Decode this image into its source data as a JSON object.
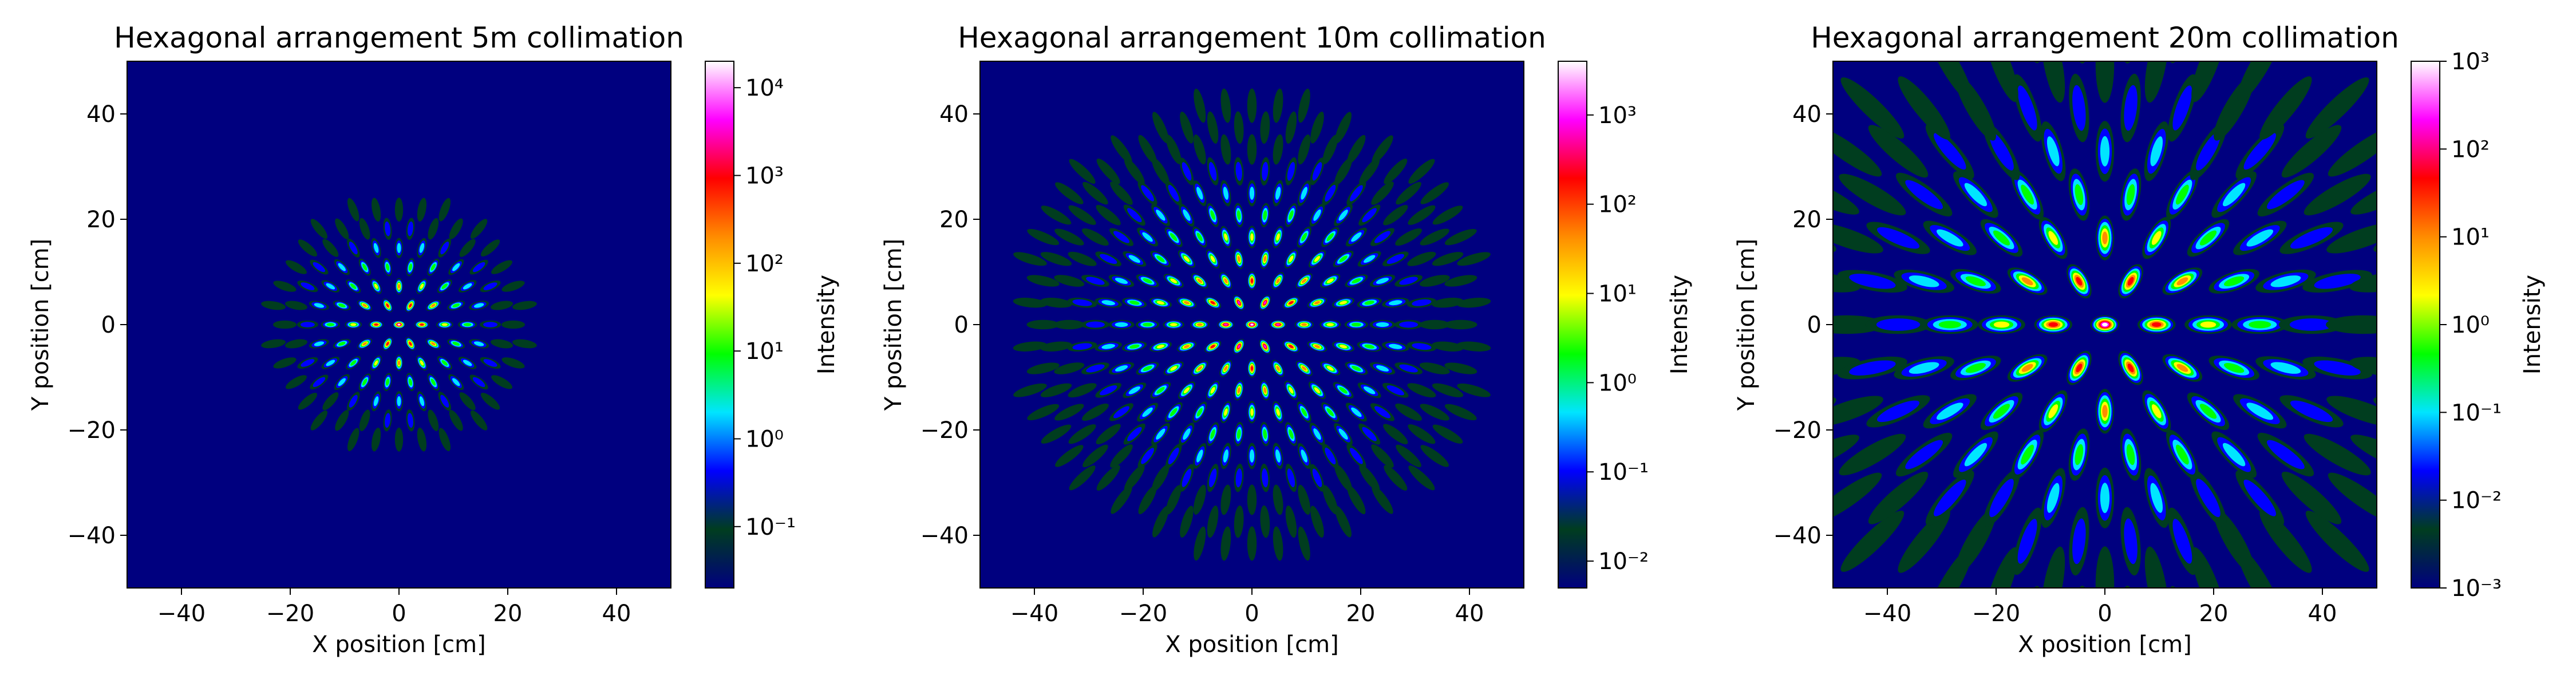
{
  "chart_data": [
    {
      "type": "heatmap",
      "title": "Hexagonal arrangement 5m collimation",
      "xlabel": "X position [cm]",
      "ylabel": "Y position [cm]",
      "xlim": [
        -50,
        50
      ],
      "ylim": [
        -50,
        50
      ],
      "xticks": [
        -40,
        -20,
        0,
        20,
        40
      ],
      "yticks": [
        -40,
        -20,
        0,
        20,
        40
      ],
      "colorbar": {
        "label": "Intensity",
        "scale": "log",
        "range": [
          0.02,
          20000
        ],
        "ticks": [
          {
            "value": 0.1,
            "label": "10⁻¹"
          },
          {
            "value": 1,
            "label": "10⁰"
          },
          {
            "value": 10,
            "label": "10¹"
          },
          {
            "value": 100,
            "label": "10²"
          },
          {
            "value": 1000,
            "label": "10³"
          },
          {
            "value": 10000,
            "label": "10⁴"
          }
        ]
      },
      "pattern": {
        "pitch": 4.2,
        "extent": 25,
        "stretch": 1.0
      }
    },
    {
      "type": "heatmap",
      "title": "Hexagonal arrangement 10m collimation",
      "xlabel": "X position [cm]",
      "ylabel": "Y position [cm]",
      "xlim": [
        -50,
        50
      ],
      "ylim": [
        -50,
        50
      ],
      "xticks": [
        -40,
        -20,
        0,
        20,
        40
      ],
      "yticks": [
        -40,
        -20,
        0,
        20,
        40
      ],
      "colorbar": {
        "label": "Intensity",
        "scale": "log",
        "range": [
          0.005,
          4000
        ],
        "ticks": [
          {
            "value": 0.01,
            "label": "10⁻²"
          },
          {
            "value": 0.1,
            "label": "10⁻¹"
          },
          {
            "value": 1,
            "label": "10⁰"
          },
          {
            "value": 10,
            "label": "10¹"
          },
          {
            "value": 100,
            "label": "10²"
          },
          {
            "value": 1000,
            "label": "10³"
          }
        ]
      },
      "pattern": {
        "pitch": 4.8,
        "extent": 43,
        "stretch": 1.4
      }
    },
    {
      "type": "heatmap",
      "title": "Hexagonal arrangement 20m collimation",
      "xlabel": "X position [cm]",
      "ylabel": "Y position [cm]",
      "xlim": [
        -50,
        50
      ],
      "ylim": [
        -50,
        50
      ],
      "xticks": [
        -40,
        -20,
        0,
        20,
        40
      ],
      "yticks": [
        -40,
        -20,
        0,
        20,
        40
      ],
      "colorbar": {
        "label": "Intensity",
        "scale": "log",
        "range": [
          0.001,
          1000
        ],
        "ticks": [
          {
            "value": 0.001,
            "label": "10⁻³"
          },
          {
            "value": 0.01,
            "label": "10⁻²"
          },
          {
            "value": 0.1,
            "label": "10⁻¹"
          },
          {
            "value": 1,
            "label": "10⁰"
          },
          {
            "value": 10,
            "label": "10¹"
          },
          {
            "value": 100,
            "label": "10²"
          },
          {
            "value": 1000,
            "label": "10³"
          }
        ]
      },
      "pattern": {
        "pitch": 9.5,
        "extent": 60,
        "stretch": 2.0
      }
    }
  ],
  "colormap": [
    "#00007f",
    "#003d1f",
    "#0000ff",
    "#00e5ff",
    "#00ff00",
    "#ffff00",
    "#ff8c00",
    "#ff0000",
    "#ff00ff",
    "#ffffff"
  ]
}
